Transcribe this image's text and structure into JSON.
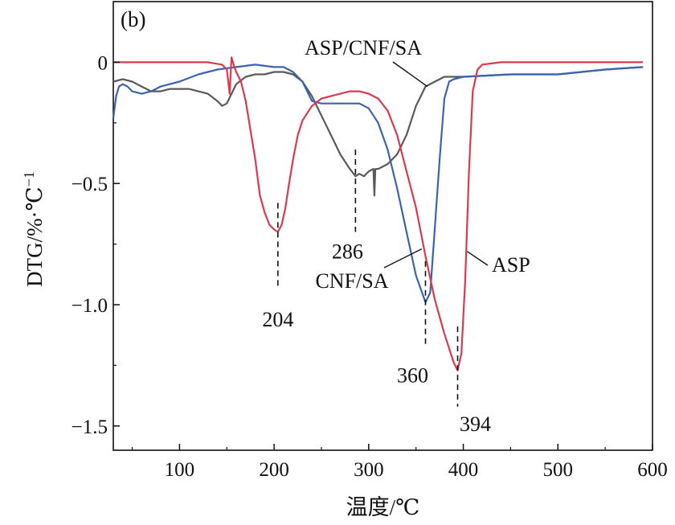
{
  "chart_data": {
    "type": "line",
    "panel_label": "(b)",
    "xlabel": "温度/℃",
    "ylabel_main": "DTG/%·℃",
    "ylabel_sup": "−1",
    "xlim": [
      30,
      600
    ],
    "ylim": [
      -1.6,
      0.25
    ],
    "x_ticks": [
      100,
      200,
      300,
      400,
      500,
      600
    ],
    "x_tick_labels": [
      "100",
      "200",
      "300",
      "400",
      "500",
      "600"
    ],
    "y_ticks": [
      0,
      -0.5,
      -1.0,
      -1.5
    ],
    "y_tick_labels": [
      "0",
      "−0.5",
      "−1.0",
      "−1.5"
    ],
    "grid": false,
    "series": [
      {
        "name": "ASP/CNF/SA",
        "color": "#5a5a5a",
        "points": [
          [
            30,
            -0.08
          ],
          [
            40,
            -0.07
          ],
          [
            50,
            -0.08
          ],
          [
            60,
            -0.1
          ],
          [
            70,
            -0.12
          ],
          [
            80,
            -0.12
          ],
          [
            90,
            -0.11
          ],
          [
            100,
            -0.11
          ],
          [
            110,
            -0.11
          ],
          [
            120,
            -0.12
          ],
          [
            130,
            -0.13
          ],
          [
            140,
            -0.16
          ],
          [
            145,
            -0.18
          ],
          [
            150,
            -0.17
          ],
          [
            155,
            -0.13
          ],
          [
            160,
            -0.09
          ],
          [
            170,
            -0.06
          ],
          [
            180,
            -0.05
          ],
          [
            190,
            -0.05
          ],
          [
            200,
            -0.04
          ],
          [
            210,
            -0.04
          ],
          [
            220,
            -0.05
          ],
          [
            230,
            -0.08
          ],
          [
            240,
            -0.14
          ],
          [
            250,
            -0.22
          ],
          [
            260,
            -0.3
          ],
          [
            270,
            -0.38
          ],
          [
            280,
            -0.44
          ],
          [
            286,
            -0.47
          ],
          [
            290,
            -0.46
          ],
          [
            295,
            -0.47
          ],
          [
            300,
            -0.45
          ],
          [
            305,
            -0.44
          ],
          [
            306,
            -0.55
          ],
          [
            307,
            -0.44
          ],
          [
            310,
            -0.44
          ],
          [
            320,
            -0.42
          ],
          [
            330,
            -0.38
          ],
          [
            340,
            -0.3
          ],
          [
            350,
            -0.18
          ],
          [
            360,
            -0.1
          ],
          [
            370,
            -0.08
          ],
          [
            380,
            -0.06
          ],
          [
            400,
            -0.06
          ],
          [
            450,
            -0.05
          ],
          [
            500,
            -0.05
          ],
          [
            550,
            -0.03
          ],
          [
            590,
            -0.02
          ]
        ]
      },
      {
        "name": "CNF/SA",
        "color": "#3b63b0",
        "points": [
          [
            30,
            -0.23
          ],
          [
            33,
            -0.14
          ],
          [
            36,
            -0.1
          ],
          [
            40,
            -0.09
          ],
          [
            45,
            -0.1
          ],
          [
            50,
            -0.12
          ],
          [
            60,
            -0.13
          ],
          [
            70,
            -0.12
          ],
          [
            80,
            -0.1
          ],
          [
            90,
            -0.09
          ],
          [
            100,
            -0.08
          ],
          [
            120,
            -0.05
          ],
          [
            140,
            -0.03
          ],
          [
            160,
            -0.02
          ],
          [
            180,
            -0.01
          ],
          [
            200,
            -0.02
          ],
          [
            210,
            -0.02
          ],
          [
            220,
            -0.04
          ],
          [
            230,
            -0.08
          ],
          [
            240,
            -0.16
          ],
          [
            250,
            -0.17
          ],
          [
            260,
            -0.17
          ],
          [
            280,
            -0.17
          ],
          [
            290,
            -0.17
          ],
          [
            300,
            -0.19
          ],
          [
            310,
            -0.25
          ],
          [
            320,
            -0.36
          ],
          [
            330,
            -0.52
          ],
          [
            340,
            -0.7
          ],
          [
            350,
            -0.88
          ],
          [
            360,
            -0.99
          ],
          [
            365,
            -0.95
          ],
          [
            370,
            -0.68
          ],
          [
            375,
            -0.4
          ],
          [
            380,
            -0.15
          ],
          [
            385,
            -0.08
          ],
          [
            390,
            -0.07
          ],
          [
            400,
            -0.06
          ],
          [
            450,
            -0.05
          ],
          [
            500,
            -0.05
          ],
          [
            550,
            -0.03
          ],
          [
            590,
            -0.02
          ]
        ]
      },
      {
        "name": "ASP",
        "color": "#d93a4f",
        "points": [
          [
            30,
            0.0
          ],
          [
            60,
            0.0
          ],
          [
            100,
            0.0
          ],
          [
            130,
            0.0
          ],
          [
            145,
            -0.01
          ],
          [
            150,
            -0.03
          ],
          [
            153,
            -0.13
          ],
          [
            155,
            0.02
          ],
          [
            158,
            -0.02
          ],
          [
            160,
            -0.04
          ],
          [
            165,
            -0.08
          ],
          [
            170,
            -0.16
          ],
          [
            175,
            -0.28
          ],
          [
            180,
            -0.4
          ],
          [
            185,
            -0.55
          ],
          [
            190,
            -0.62
          ],
          [
            195,
            -0.67
          ],
          [
            200,
            -0.69
          ],
          [
            204,
            -0.7
          ],
          [
            208,
            -0.67
          ],
          [
            212,
            -0.6
          ],
          [
            215,
            -0.52
          ],
          [
            220,
            -0.4
          ],
          [
            225,
            -0.3
          ],
          [
            230,
            -0.24
          ],
          [
            240,
            -0.18
          ],
          [
            250,
            -0.15
          ],
          [
            260,
            -0.14
          ],
          [
            270,
            -0.13
          ],
          [
            280,
            -0.12
          ],
          [
            290,
            -0.12
          ],
          [
            300,
            -0.13
          ],
          [
            310,
            -0.15
          ],
          [
            320,
            -0.2
          ],
          [
            330,
            -0.3
          ],
          [
            340,
            -0.45
          ],
          [
            350,
            -0.6
          ],
          [
            360,
            -0.8
          ],
          [
            370,
            -0.98
          ],
          [
            380,
            -1.12
          ],
          [
            390,
            -1.24
          ],
          [
            394,
            -1.27
          ],
          [
            398,
            -1.2
          ],
          [
            402,
            -0.9
          ],
          [
            406,
            -0.45
          ],
          [
            410,
            -0.12
          ],
          [
            415,
            -0.03
          ],
          [
            420,
            -0.01
          ],
          [
            440,
            0.0
          ],
          [
            500,
            0.0
          ],
          [
            590,
            0.0
          ]
        ]
      }
    ],
    "annotations": {
      "series_labels": [
        {
          "text": "ASP/CNF/SA",
          "ax": 420,
          "ay": 0.06,
          "px": 362,
          "py": -0.1
        },
        {
          "text": "CNF/SA",
          "ax": 340,
          "ay": -0.83,
          "px": 356,
          "py": -0.77
        },
        {
          "text": "ASP",
          "ax": 430,
          "ay": -0.86,
          "px": 404,
          "py": -0.78
        }
      ],
      "peaks": [
        {
          "text": "204",
          "x": 204,
          "y_top": -0.58,
          "y_bottom": -0.93,
          "label_y": -1.06
        },
        {
          "text": "286",
          "x": 286,
          "y_top": -0.36,
          "y_bottom": -0.7,
          "label_y": -0.78
        },
        {
          "text": "360",
          "x": 360,
          "y_top": -0.82,
          "y_bottom": -1.17,
          "label_y": -1.29
        },
        {
          "text": "394",
          "x": 394,
          "y_top": -1.09,
          "y_bottom": -1.42,
          "label_y": -1.49
        }
      ]
    }
  }
}
